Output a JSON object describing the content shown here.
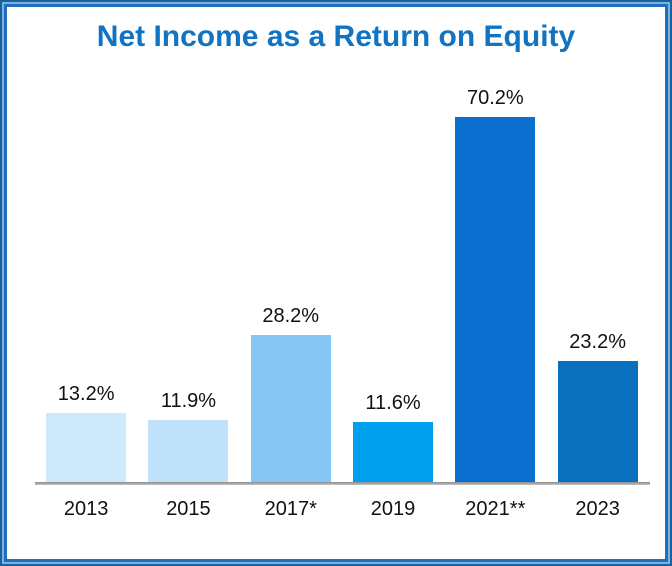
{
  "title": "Net Income as a Return on Equity",
  "colors": {
    "frame_border_outer": "#15629f",
    "frame_border_highlight": "#7fb1da",
    "frame_border_inner": "#1b6fbe",
    "title_text": "#1173c1",
    "axis_line": "#a6a6a6",
    "label_text": "#111111"
  },
  "chart_data": {
    "type": "bar",
    "title": "Net Income as a Return on Equity",
    "categories": [
      "2013",
      "2015",
      "2017*",
      "2019",
      "2021**",
      "2023"
    ],
    "values": [
      13.2,
      11.9,
      28.2,
      11.6,
      70.2,
      23.2
    ],
    "value_labels": [
      "13.2%",
      "11.9%",
      "28.2%",
      "11.6%",
      "70.2%",
      "23.2%"
    ],
    "bar_colors": [
      "#cdeafb",
      "#bfe1fa",
      "#85c6f4",
      "#00a0ee",
      "#0a6fce",
      "#0870bc"
    ],
    "xlabel": "",
    "ylabel": "",
    "ylim": [
      0,
      75
    ],
    "grid": false,
    "legend": false,
    "data_labels_position": "above-bar",
    "baseline_axis": "x-only"
  }
}
